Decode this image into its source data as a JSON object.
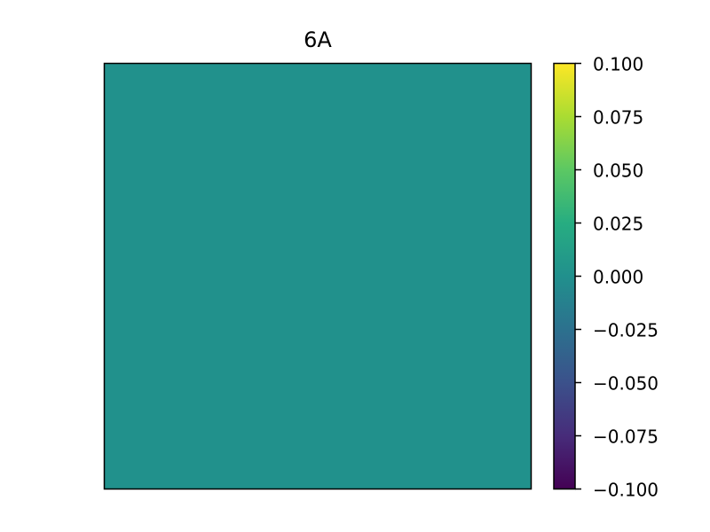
{
  "chart_data": {
    "type": "heatmap",
    "title": "6A",
    "xlabel": "",
    "ylabel": "",
    "values": [
      [
        0.0
      ]
    ],
    "cell_color": "#21918c",
    "colormap": "viridis",
    "colorbar": {
      "vmin": -0.1,
      "vmax": 0.1,
      "ticks": [
        "0.100",
        "0.075",
        "0.050",
        "0.025",
        "0.000",
        "−0.025",
        "−0.050",
        "−0.075",
        "−0.100"
      ],
      "tick_values": [
        0.1,
        0.075,
        0.05,
        0.025,
        0.0,
        -0.025,
        -0.05,
        -0.075,
        -0.1
      ],
      "placement": "right"
    },
    "axes_ticks": false,
    "grid": false
  }
}
